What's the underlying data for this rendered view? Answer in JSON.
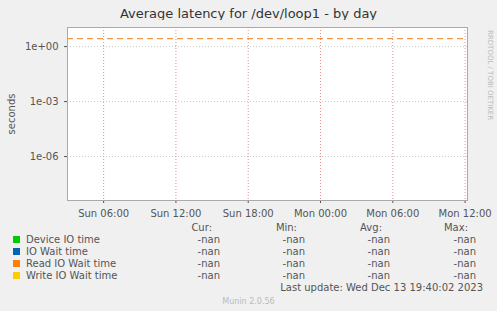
{
  "chart_data": {
    "type": "line",
    "title": "Average latency for /dev/loop1 - by day",
    "y_label": "seconds",
    "log": "y",
    "grid": true,
    "x": [],
    "xlim": [
      3.0,
      36.2
    ],
    "xticks": [
      {
        "value": 6,
        "label": "Sun 06:00"
      },
      {
        "value": 12,
        "label": "Sun 12:00"
      },
      {
        "value": 18,
        "label": "Sun 18:00"
      },
      {
        "value": 24,
        "label": "Mon 00:00"
      },
      {
        "value": 30,
        "label": "Mon 06:00"
      },
      {
        "value": 36,
        "label": "Mon 12:00"
      }
    ],
    "ylim": [
      4e-09,
      11
    ],
    "yticks": [
      {
        "value": 1e-06,
        "label": "1e-06"
      },
      {
        "value": 0.001,
        "label": "1e-03"
      },
      {
        "value": 1,
        "label": "1e+00"
      }
    ],
    "stats_columns": [
      "Cur:",
      "Min:",
      "Avg:",
      "Max:"
    ],
    "series": [
      {
        "name": "Device IO time",
        "color": "#00cc00",
        "values": [],
        "stats": [
          "-nan",
          "-nan",
          "-nan",
          "-nan"
        ]
      },
      {
        "name": "IO Wait time",
        "color": "#0066b3",
        "values": [],
        "stats": [
          "-nan",
          "-nan",
          "-nan",
          "-nan"
        ]
      },
      {
        "name": "Read IO Wait time",
        "color": "#ff8000",
        "values": [],
        "stats": [
          "-nan",
          "-nan",
          "-nan",
          "-nan"
        ]
      },
      {
        "name": "Write IO Wait time",
        "color": "#ffcc00",
        "values": [],
        "stats": [
          "-nan",
          "-nan",
          "-nan",
          "-nan"
        ]
      }
    ],
    "hlines": [
      {
        "value": 2.7,
        "color": "#f08020",
        "line_style": "dashed"
      }
    ],
    "last_update": "Last update: Wed Dec 13 19:40:02 2023",
    "footer": "Munin 2.0.56",
    "watermark": "RRDTOOL / TOBI OETIKER"
  }
}
